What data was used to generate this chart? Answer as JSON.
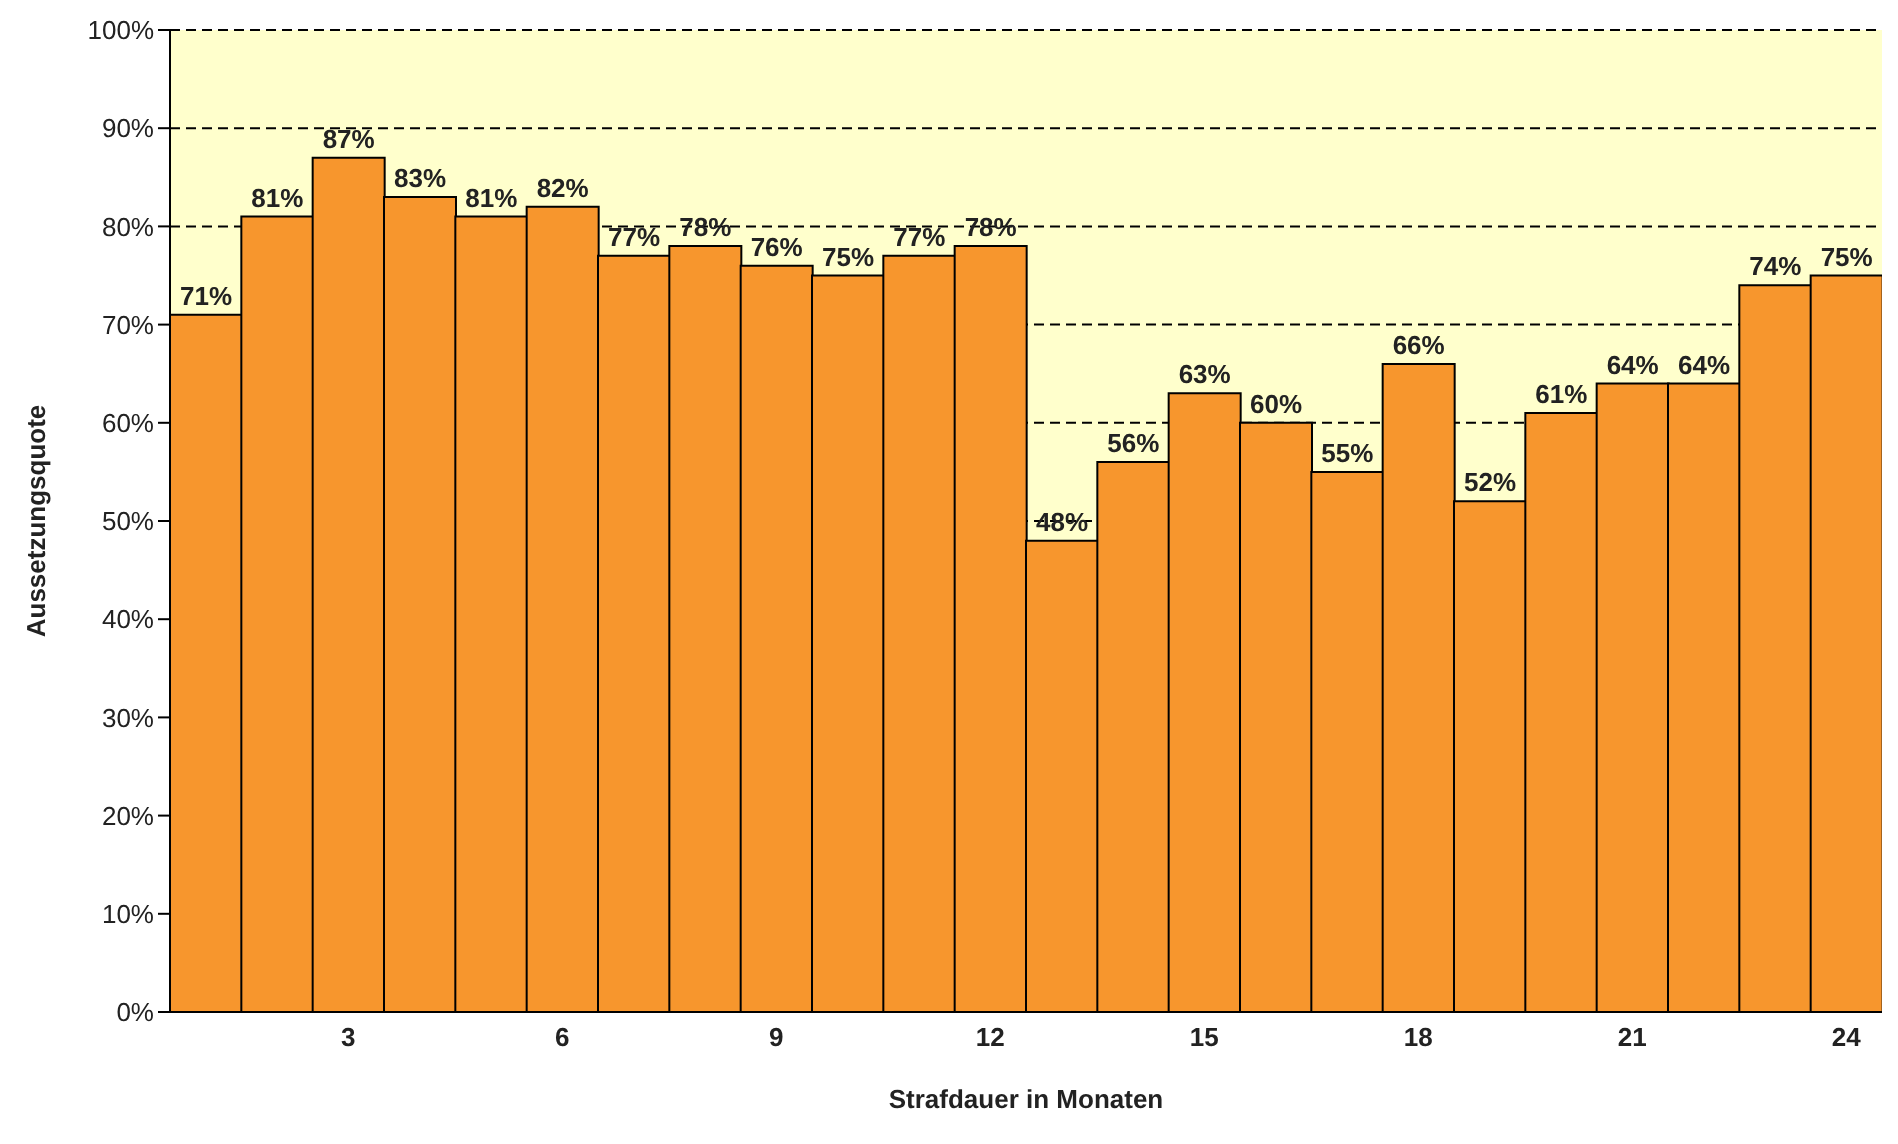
{
  "chart_data": {
    "type": "bar",
    "xlabel": "Strafdauer in Monaten",
    "ylabel": "Aussetzungsquote",
    "categories": [
      null,
      null,
      "3",
      null,
      null,
      "6",
      null,
      null,
      "9",
      null,
      null,
      "12",
      null,
      null,
      "15",
      null,
      null,
      "18",
      null,
      null,
      "21",
      null,
      null,
      "24"
    ],
    "values": [
      71,
      81,
      87,
      83,
      81,
      82,
      77,
      78,
      76,
      75,
      77,
      78,
      48,
      56,
      63,
      60,
      55,
      66,
      52,
      61,
      64,
      64,
      74,
      75
    ],
    "value_labels": [
      "71%",
      "81%",
      "87%",
      "83%",
      "81%",
      "82%",
      "77%",
      "78%",
      "76%",
      "75%",
      "77%",
      "78%",
      "48%",
      "56%",
      "63%",
      "60%",
      "55%",
      "66%",
      "52%",
      "61%",
      "64%",
      "64%",
      "74%",
      "75%"
    ],
    "color": "#f7962d",
    "ylim": [
      0,
      100
    ],
    "yticks": [
      {
        "value": 0,
        "label": "0%"
      },
      {
        "value": 10,
        "label": "10%"
      },
      {
        "value": 20,
        "label": "20%"
      },
      {
        "value": 30,
        "label": "30%"
      },
      {
        "value": 40,
        "label": "40%"
      },
      {
        "value": 50,
        "label": "50%"
      },
      {
        "value": 60,
        "label": "60%"
      },
      {
        "value": 70,
        "label": "70%"
      },
      {
        "value": 80,
        "label": "80%"
      },
      {
        "value": 90,
        "label": "90%"
      },
      {
        "value": 100,
        "label": "100%"
      }
    ],
    "grid": "y",
    "legend": false
  }
}
